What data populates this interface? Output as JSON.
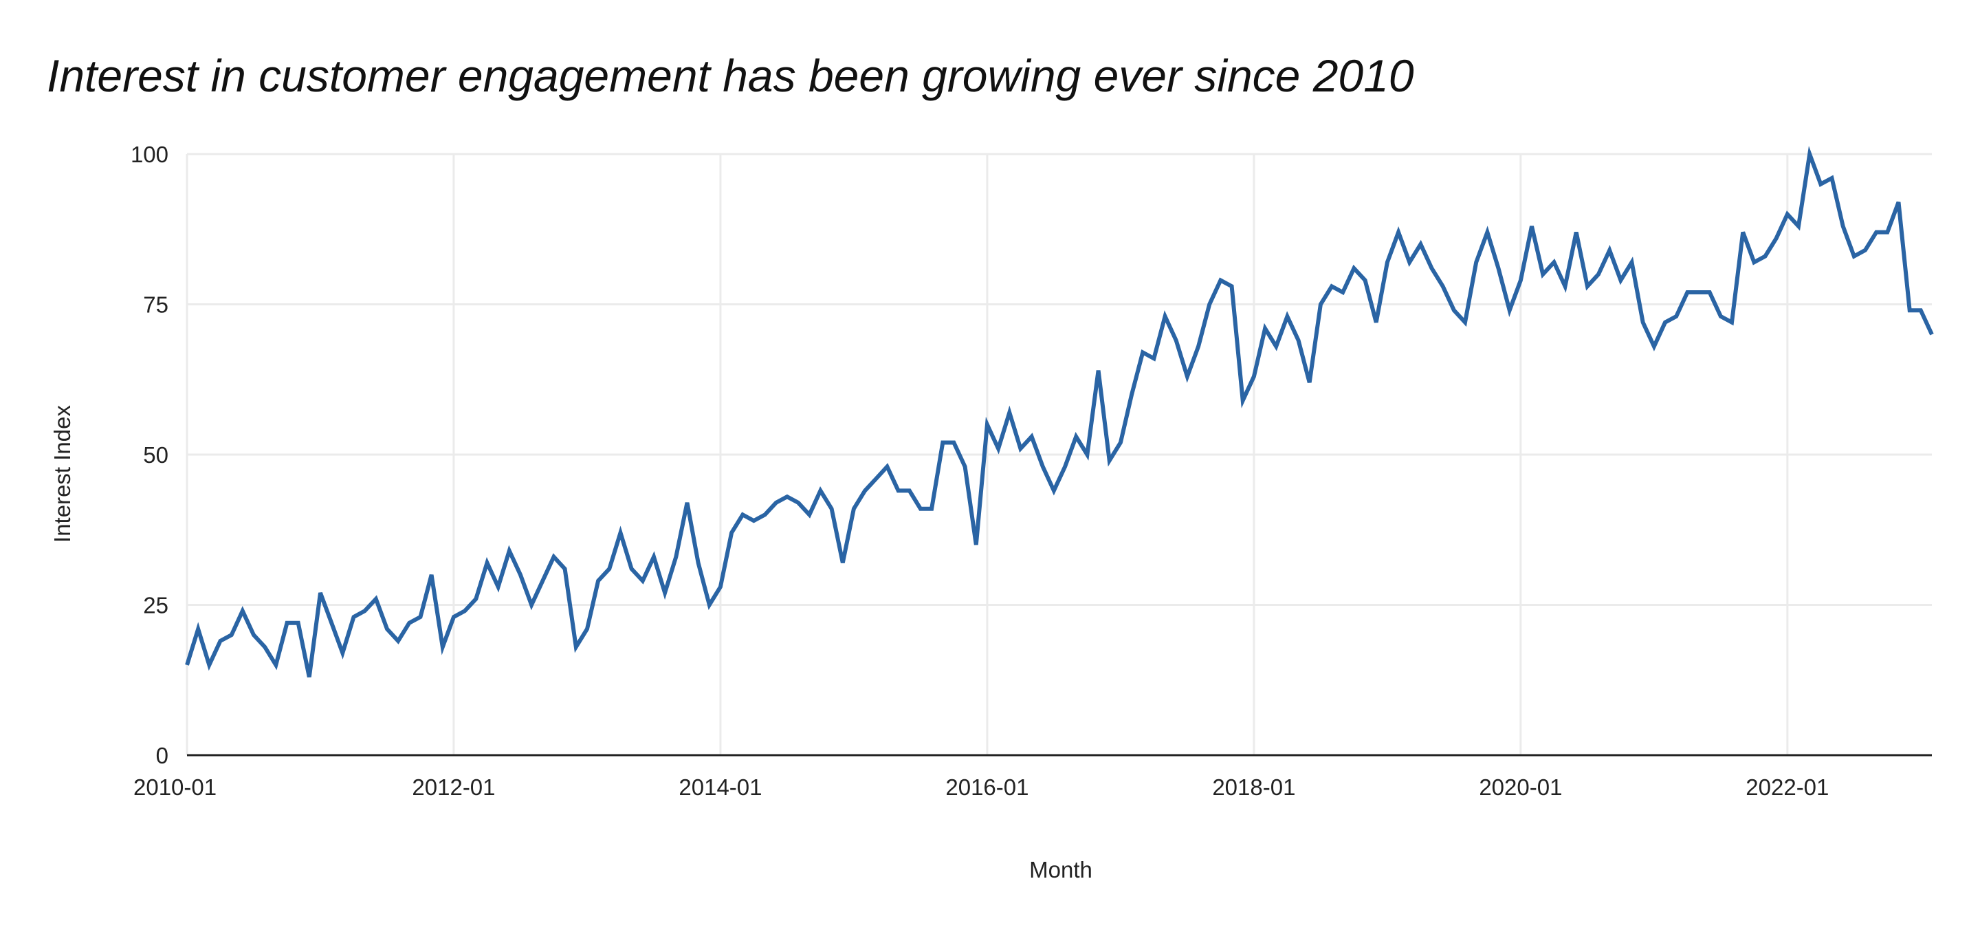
{
  "chart_data": {
    "type": "line",
    "title": "Interest in customer engagement has been growing ever since 2010",
    "xlabel": "Month",
    "ylabel": "Interest Index",
    "ylim": [
      0,
      100
    ],
    "yticks": [
      "0",
      "25",
      "50",
      "75",
      "100"
    ],
    "xticks": [
      "2010-01",
      "2012-01",
      "2014-01",
      "2016-01",
      "2018-01",
      "2020-01",
      "2022-01"
    ],
    "x_start": "2010-01",
    "x_end": "2023-02",
    "x_interval": "monthly",
    "grid": true,
    "legend": "none",
    "line_color": "#2a64a4",
    "series": [
      {
        "values": [
          15,
          21,
          15,
          19,
          20,
          24,
          20,
          18,
          15,
          22,
          22,
          13,
          27,
          22,
          17,
          23,
          24,
          26,
          21,
          19,
          22,
          23,
          30,
          18,
          23,
          24,
          26,
          32,
          28,
          34,
          30,
          25,
          29,
          33,
          31,
          18,
          21,
          29,
          31,
          37,
          31,
          29,
          33,
          27,
          33,
          42,
          32,
          25,
          28,
          37,
          40,
          39,
          40,
          42,
          43,
          42,
          40,
          44,
          41,
          32,
          41,
          44,
          46,
          48,
          44,
          44,
          41,
          41,
          52,
          52,
          48,
          35,
          55,
          51,
          57,
          51,
          53,
          48,
          44,
          48,
          53,
          50,
          64,
          49,
          52,
          60,
          67,
          66,
          73,
          69,
          63,
          68,
          75,
          79,
          78,
          59,
          63,
          71,
          68,
          73,
          69,
          62,
          75,
          78,
          77,
          81,
          79,
          72,
          82,
          87,
          82,
          85,
          81,
          78,
          74,
          72,
          82,
          87,
          81,
          74,
          79,
          88,
          80,
          82,
          78,
          87,
          78,
          80,
          84,
          79,
          82,
          72,
          68,
          72,
          73,
          77,
          77,
          77,
          73,
          72,
          87,
          82,
          83,
          86,
          90,
          88,
          100,
          95,
          96,
          88,
          83,
          84,
          87,
          87,
          92,
          74,
          74,
          70
        ]
      }
    ]
  }
}
